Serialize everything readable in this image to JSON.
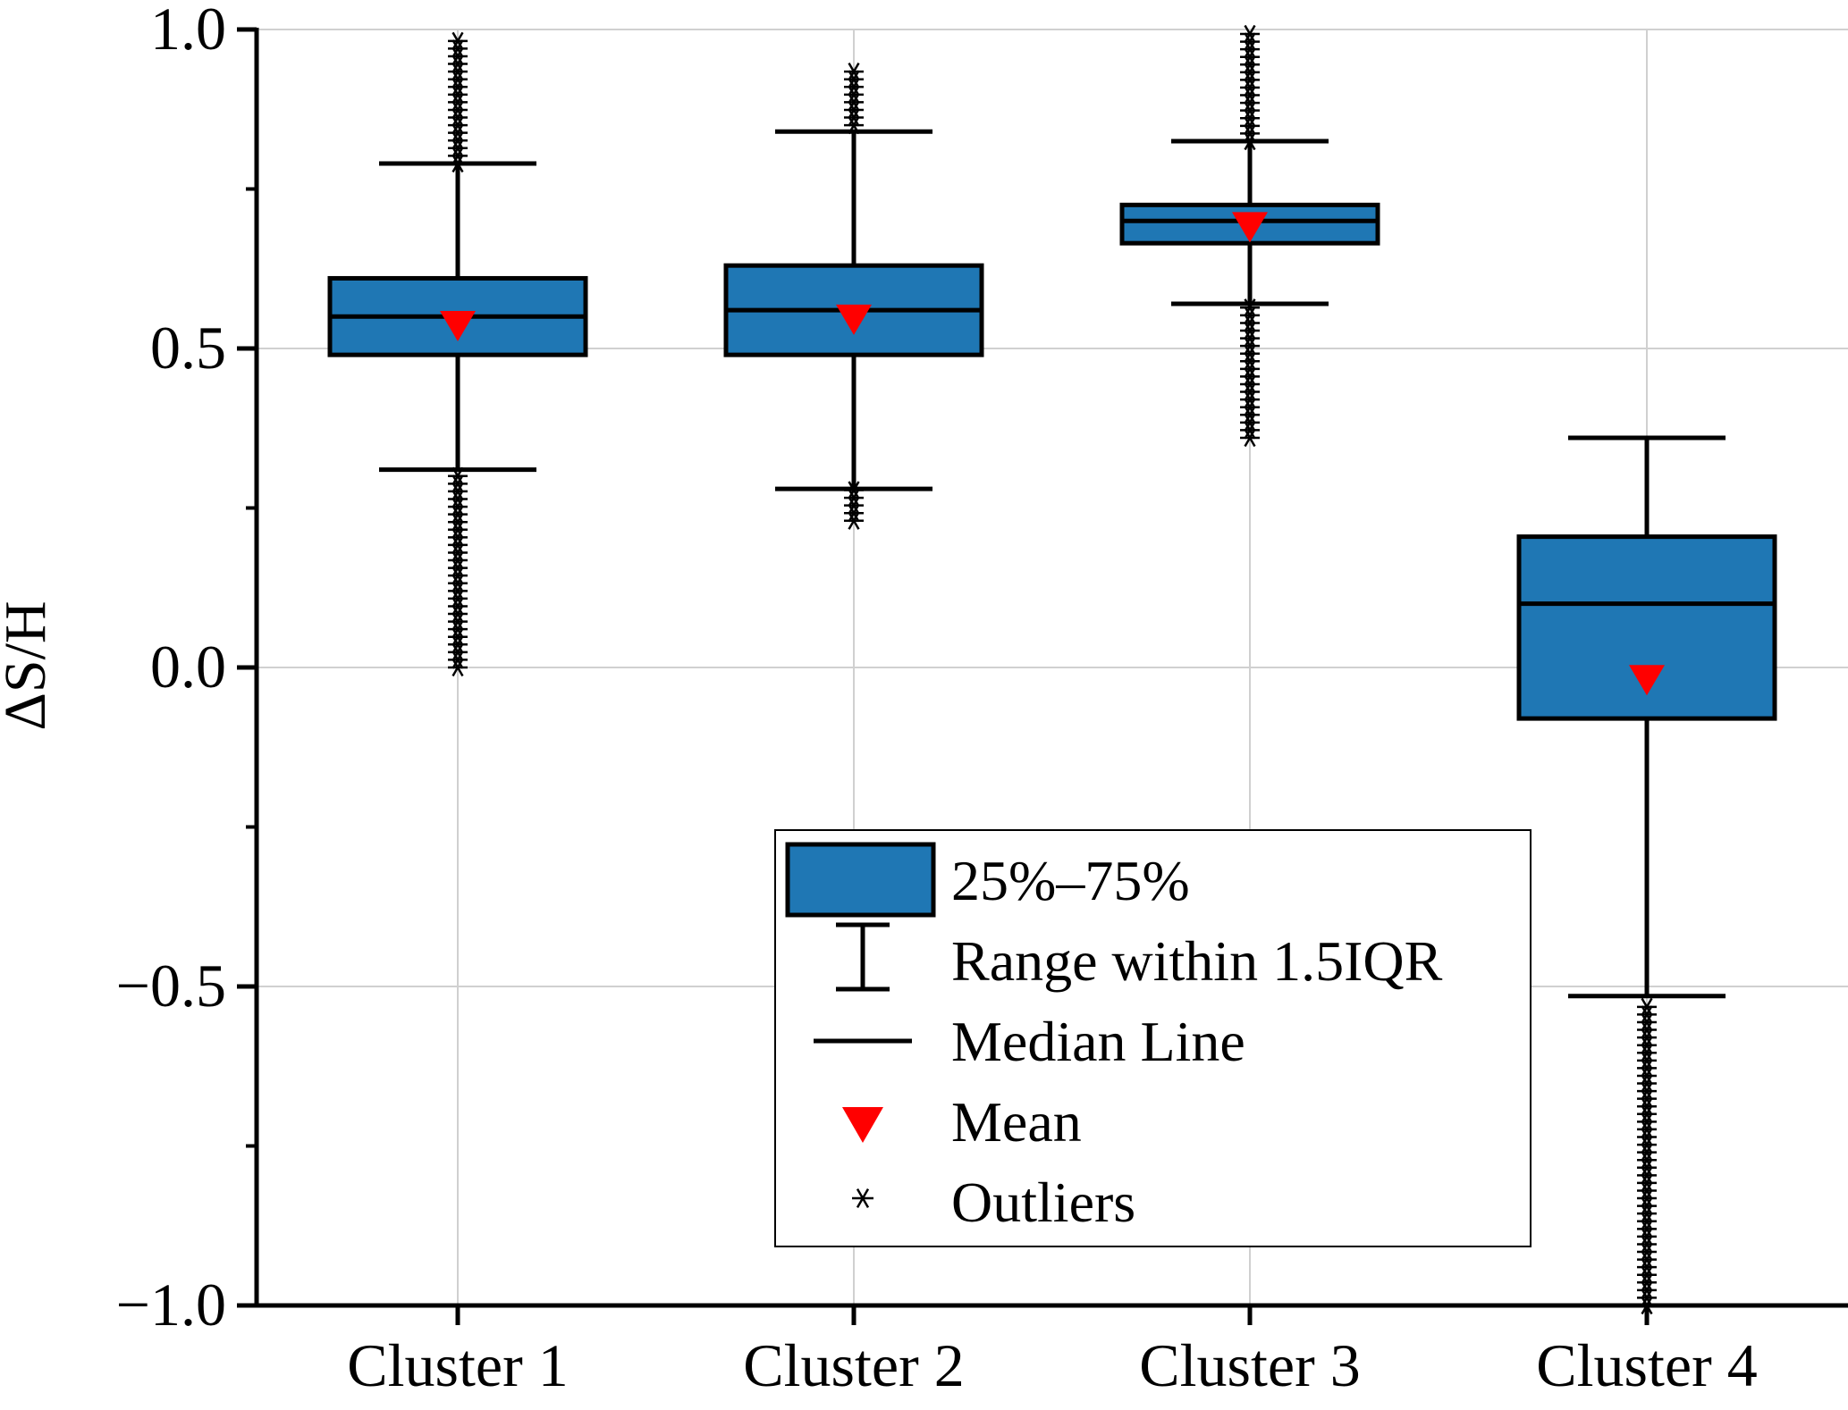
{
  "chart_data": {
    "type": "box",
    "title": "",
    "xlabel": "",
    "ylabel": "ΔS/H",
    "ylim": [
      -1.0,
      1.0
    ],
    "yticks": [
      1.0,
      0.5,
      0.0,
      -0.5,
      -1.0
    ],
    "ytick_labels": [
      "1.0",
      "0.5",
      "0.0",
      "−0.5",
      "−1.0"
    ],
    "grid": true,
    "categories": [
      "Cluster 1",
      "Cluster 2",
      "Cluster 3",
      "Cluster 4"
    ],
    "boxes": [
      {
        "category": "Cluster 1",
        "q1": 0.49,
        "median": 0.55,
        "q3": 0.61,
        "mean": 0.535,
        "whisker_low": 0.31,
        "whisker_high": 0.79,
        "outliers_low_range": [
          0.0,
          0.31
        ],
        "outliers_high_range": [
          0.79,
          0.99
        ]
      },
      {
        "category": "Cluster 2",
        "q1": 0.49,
        "median": 0.56,
        "q3": 0.63,
        "mean": 0.545,
        "whisker_low": 0.28,
        "whisker_high": 0.84,
        "outliers_low_range": [
          0.23,
          0.28
        ],
        "outliers_high_range": [
          0.85,
          0.94
        ]
      },
      {
        "category": "Cluster 3",
        "q1": 0.665,
        "median": 0.7,
        "q3": 0.725,
        "mean": 0.69,
        "whisker_low": 0.57,
        "whisker_high": 0.825,
        "outliers_low_range": [
          0.36,
          0.57
        ],
        "outliers_high_range": [
          0.825,
          1.0
        ]
      },
      {
        "category": "Cluster 4",
        "q1": -0.08,
        "median": 0.1,
        "q3": 0.205,
        "mean": -0.02,
        "whisker_low": -0.515,
        "whisker_high": 0.36,
        "outliers_low_range": [
          -1.0,
          -0.53
        ],
        "outliers_high_range": null
      }
    ],
    "legend": {
      "placement": "bottom-center",
      "entries": [
        {
          "label": "25%–75%",
          "symbol": "box"
        },
        {
          "label": "Range within 1.5IQR",
          "symbol": "whisker"
        },
        {
          "label": "Median Line",
          "symbol": "line"
        },
        {
          "label": "Mean",
          "symbol": "triangle"
        },
        {
          "label": "Outliers",
          "symbol": "star"
        }
      ]
    },
    "colors": {
      "box_fill": "#1f77b4",
      "mean": "#ff0000",
      "line": "#000000",
      "grid": "#d0d0d0"
    }
  }
}
